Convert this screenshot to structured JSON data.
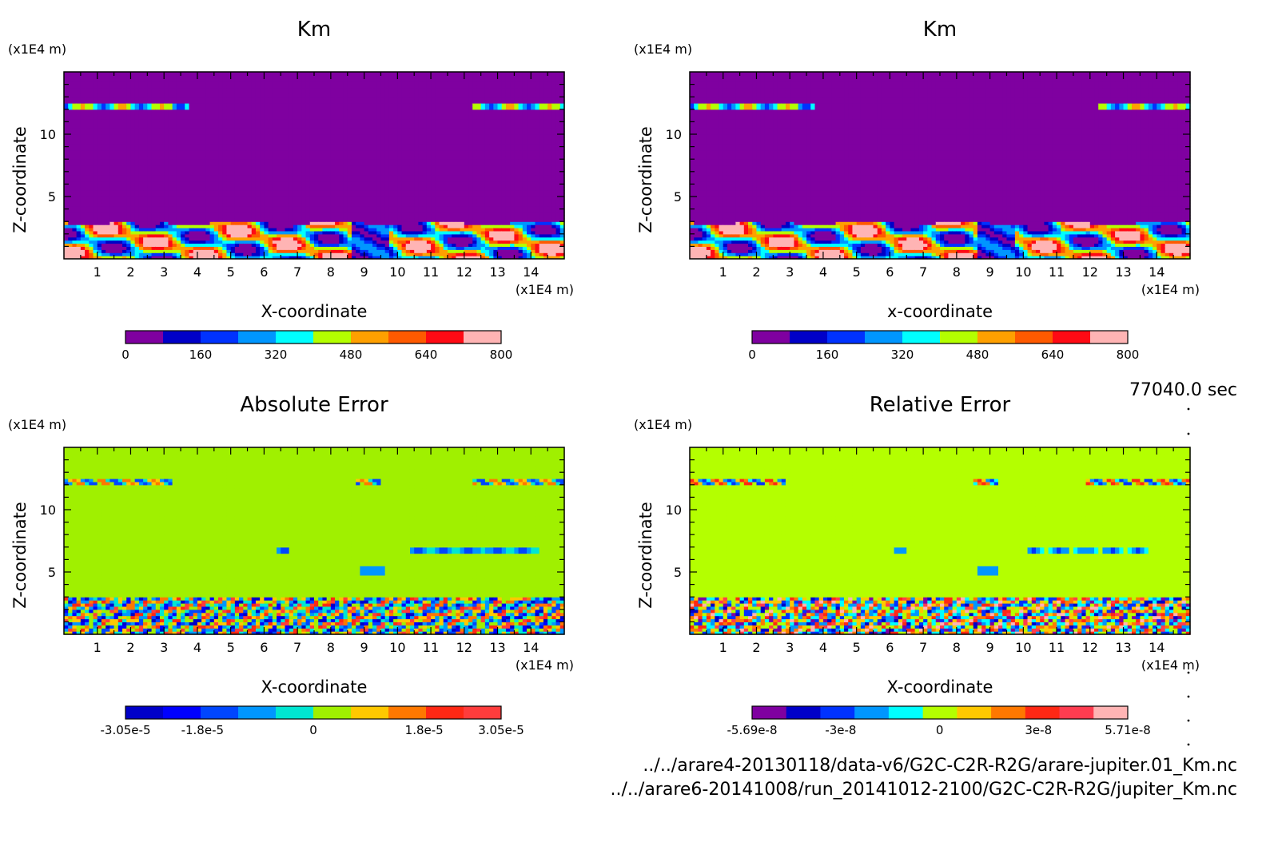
{
  "chart_data": [
    {
      "type": "heatmap",
      "title": "Km",
      "xlabel": "X-coordinate",
      "ylabel": "Z-coordinate",
      "x_unit": "(x1E4 m)",
      "y_unit": "(x1E4 m)",
      "xlim": [
        0,
        15
      ],
      "ylim": [
        0,
        15
      ],
      "x_ticks": [
        1,
        2,
        3,
        4,
        5,
        6,
        7,
        8,
        9,
        10,
        11,
        12,
        13,
        14
      ],
      "y_ticks": [
        5,
        10
      ],
      "field": "km",
      "colorbar": {
        "colors": [
          "#7f00a0",
          "#0000c8",
          "#0032ff",
          "#0096ff",
          "#00ffff",
          "#b4ff00",
          "#ffa000",
          "#ff5a00",
          "#ff0a14",
          "#ffb4b4"
        ],
        "labels": [
          "0",
          "160",
          "320",
          "480",
          "640",
          "800"
        ],
        "label_values": [
          0,
          160,
          320,
          480,
          640,
          800
        ],
        "range": [
          0,
          800
        ]
      }
    },
    {
      "type": "heatmap",
      "title": "Km",
      "xlabel": "x-coordinate",
      "ylabel": "Z-coordinate",
      "x_unit": "(x1E4 m)",
      "y_unit": "(x1E4 m)",
      "xlim": [
        0,
        15
      ],
      "ylim": [
        0,
        15
      ],
      "x_ticks": [
        1,
        2,
        3,
        4,
        5,
        6,
        7,
        8,
        9,
        10,
        11,
        12,
        13,
        14
      ],
      "y_ticks": [
        5,
        10
      ],
      "field": "km",
      "colorbar": {
        "colors": [
          "#7f00a0",
          "#0000c8",
          "#0032ff",
          "#0096ff",
          "#00ffff",
          "#b4ff00",
          "#ffa000",
          "#ff5a00",
          "#ff0a14",
          "#ffb4b4"
        ],
        "labels": [
          "0",
          "160",
          "320",
          "480",
          "640",
          "800"
        ],
        "label_values": [
          0,
          160,
          320,
          480,
          640,
          800
        ],
        "range": [
          0,
          800
        ]
      }
    },
    {
      "type": "heatmap",
      "title": "Absolute Error",
      "xlabel": "X-coordinate",
      "ylabel": "Z-coordinate",
      "x_unit": "(x1E4 m)",
      "y_unit": "(x1E4 m)",
      "xlim": [
        0,
        15
      ],
      "ylim": [
        0,
        15
      ],
      "x_ticks": [
        1,
        2,
        3,
        4,
        5,
        6,
        7,
        8,
        9,
        10,
        11,
        12,
        13,
        14
      ],
      "y_ticks": [
        5,
        10
      ],
      "field": "err",
      "colorbar": {
        "colors": [
          "#0000c8",
          "#0000ff",
          "#0046ff",
          "#0096ff",
          "#00e6d2",
          "#a0f000",
          "#ffc800",
          "#ff7800",
          "#ff2814",
          "#ff3c3c"
        ],
        "labels": [
          "-3.05e-5",
          "-1.8e-5",
          "0",
          "1.8e-5",
          "3.05e-5"
        ],
        "label_values": [
          -3.05e-05,
          -1.8e-05,
          0,
          1.8e-05,
          3.05e-05
        ],
        "range": [
          -3.05e-05,
          3.05e-05
        ]
      }
    },
    {
      "type": "heatmap",
      "title": "Relative Error",
      "xlabel": "X-coordinate",
      "ylabel": "Z-coordinate",
      "x_unit": "(x1E4 m)",
      "y_unit": "(x1E4 m)",
      "xlim": [
        0,
        15
      ],
      "ylim": [
        0,
        15
      ],
      "x_ticks": [
        1,
        2,
        3,
        4,
        5,
        6,
        7,
        8,
        9,
        10,
        11,
        12,
        13,
        14
      ],
      "y_ticks": [
        5,
        10
      ],
      "field": "rel",
      "colorbar": {
        "colors": [
          "#7f00a0",
          "#0000c8",
          "#0032ff",
          "#0096ff",
          "#00ffff",
          "#b4ff00",
          "#ffc800",
          "#ff7800",
          "#ff2814",
          "#ff3c50",
          "#ffb4b4"
        ],
        "labels": [
          "-5.69e-8",
          "-3e-8",
          "0",
          "3e-8",
          "5.71e-8"
        ],
        "label_values": [
          -5.69e-08,
          -3e-08,
          0,
          3e-08,
          5.71e-08
        ],
        "range": [
          -5.69e-08,
          5.71e-08
        ]
      }
    }
  ],
  "time_label": "77040.0 sec",
  "files": [
    "../../arare4-20130118/data-v6/G2C-C2R-R2G/arare-jupiter.01_Km.nc",
    "../../arare6-20141008/run_20141012-2100/G2C-C2R-R2G/jupiter_Km.nc"
  ]
}
